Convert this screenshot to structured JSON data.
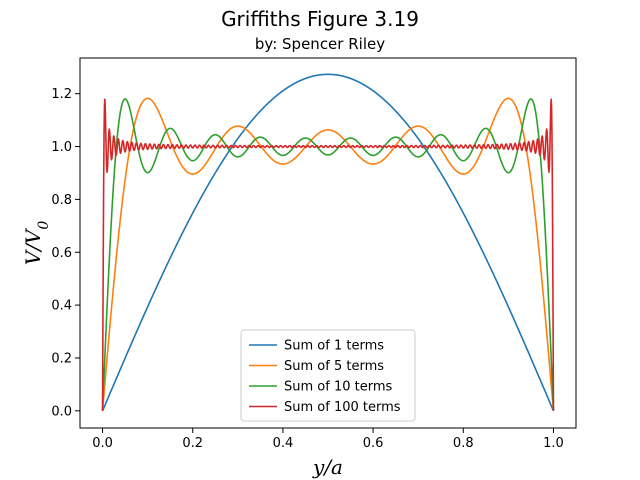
{
  "chart_data": {
    "type": "line",
    "title": "Griffiths Figure 3.19",
    "subtitle": "by: Spencer Riley",
    "xlabel": "y/a",
    "ylabel": "V/V",
    "ylabel_sub": "0",
    "xlim": [
      -0.05,
      1.05
    ],
    "ylim": [
      -0.065,
      1.335
    ],
    "xticks": [
      0.0,
      0.2,
      0.4,
      0.6,
      0.8,
      1.0
    ],
    "xtick_labels": [
      "0.0",
      "0.2",
      "0.4",
      "0.6",
      "0.8",
      "1.0"
    ],
    "yticks": [
      0.0,
      0.2,
      0.4,
      0.6,
      0.8,
      1.0,
      1.2
    ],
    "ytick_labels": [
      "0.0",
      "0.2",
      "0.4",
      "0.6",
      "0.8",
      "1.0",
      "1.2"
    ],
    "legend_position": "lower-center",
    "series": [
      {
        "name": "Sum of 1 terms",
        "terms": 1,
        "color": "#1f77b4"
      },
      {
        "name": "Sum of 5 terms",
        "terms": 5,
        "color": "#ff7f0e"
      },
      {
        "name": "Sum of 10 terms",
        "terms": 10,
        "color": "#2ca02c"
      },
      {
        "name": "Sum of 100 terms",
        "terms": 100,
        "color": "#d62728"
      }
    ]
  }
}
